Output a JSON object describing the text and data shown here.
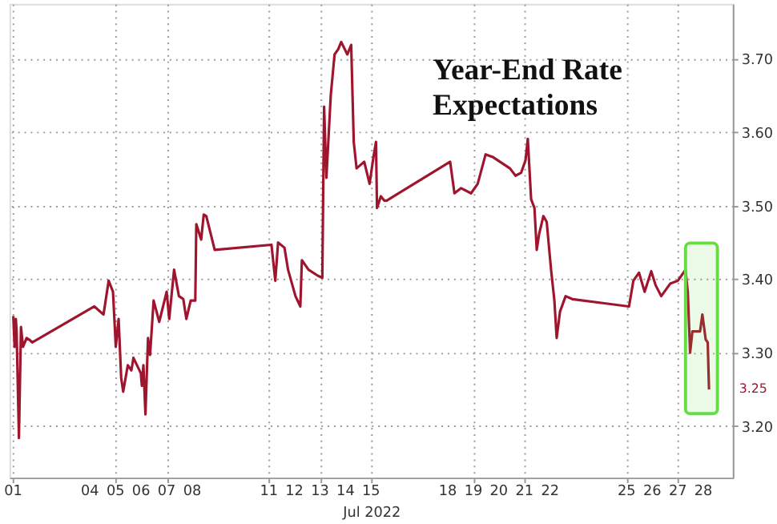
{
  "chart_data": {
    "type": "line",
    "title": "Year-End Rate Expectations",
    "xlabel": "Jul 2022",
    "x": [
      "2022-07-01T00:00",
      "2022-07-01T01:12",
      "2022-07-01T02:24",
      "2022-07-01T03:07",
      "2022-07-01T05:17",
      "2022-07-01T07:12",
      "2022-07-01T09:07",
      "2022-07-01T12:29",
      "2022-07-01T14:53",
      "2022-07-01T17:46",
      "2022-07-04T04:05",
      "2022-07-04T12:43",
      "2022-07-04T17:31",
      "2022-07-04T21:36",
      "2022-07-05T00:14",
      "2022-07-05T02:53",
      "2022-07-05T05:17",
      "2022-07-05T07:12",
      "2022-07-05T11:31",
      "2022-07-05T14:53",
      "2022-07-05T16:48",
      "2022-07-05T23:46",
      "2022-07-06T00:43",
      "2022-07-06T02:10",
      "2022-07-06T04:05",
      "2022-07-06T06:29",
      "2022-07-06T08:24",
      "2022-07-06T11:46",
      "2022-07-06T17:02",
      "2022-07-07T00:00",
      "2022-07-07T02:24",
      "2022-07-07T06:58",
      "2022-07-07T11:31",
      "2022-07-07T15:36",
      "2022-07-07T18:29",
      "2022-07-07T22:34",
      "2022-07-08T02:53",
      "2022-07-08T03:50",
      "2022-07-08T08:24",
      "2022-07-08T10:48",
      "2022-07-08T13:12",
      "2022-07-08T21:07",
      "2022-07-11T02:24",
      "2022-07-11T06:00",
      "2022-07-11T08:38",
      "2022-07-11T14:38",
      "2022-07-11T18:00",
      "2022-07-12T00:58",
      "2022-07-12T05:31",
      "2022-07-12T06:58",
      "2022-07-12T13:12",
      "2022-07-12T21:50",
      "2022-07-13T02:10",
      "2022-07-13T03:50",
      "2022-07-13T06:00",
      "2022-07-13T10:05",
      "2022-07-13T13:41",
      "2022-07-13T17:02",
      "2022-07-13T19:55",
      "2022-07-14T01:41",
      "2022-07-14T05:17",
      "2022-07-14T07:41",
      "2022-07-14T10:19",
      "2022-07-14T17:31",
      "2022-07-14T22:34",
      "2022-07-15T02:10",
      "2022-07-15T04:34",
      "2022-07-15T05:31",
      "2022-07-15T09:07",
      "2022-07-15T12:29",
      "2022-07-15T14:38",
      "2022-07-18T02:10",
      "2022-07-18T06:14",
      "2022-07-18T12:29",
      "2022-07-18T21:50",
      "2022-07-19T04:05",
      "2022-07-19T11:31",
      "2022-07-19T18:43",
      "2022-07-20T10:19",
      "2022-07-20T15:36",
      "2022-07-20T20:53",
      "2022-07-21T00:58",
      "2022-07-21T03:07",
      "2022-07-21T06:14",
      "2022-07-21T09:22",
      "2022-07-21T11:31",
      "2022-07-21T13:41",
      "2022-07-21T17:46",
      "2022-07-21T20:53",
      "2022-07-22T00:58",
      "2022-07-22T04:05",
      "2022-07-22T06:14",
      "2022-07-22T09:22",
      "2022-07-22T14:38",
      "2022-07-22T20:53",
      "2022-07-25T02:10",
      "2022-07-25T06:14",
      "2022-07-25T11:31",
      "2022-07-25T16:48",
      "2022-07-25T23:02",
      "2022-07-26T03:07",
      "2022-07-26T08:24",
      "2022-07-26T16:48",
      "2022-07-27T00:00",
      "2022-07-27T05:17",
      "2022-07-27T07:12",
      "2022-07-27T09:22",
      "2022-07-27T11:31",
      "2022-07-27T13:41",
      "2022-07-27T20:53",
      "2022-07-27T23:02",
      "2022-07-28T02:10",
      "2022-07-28T04:05",
      "2022-07-28T05:17"
    ],
    "series": [
      {
        "color": "#a0152e",
        "values": [
          3.35,
          3.308,
          3.346,
          3.329,
          3.184,
          3.335,
          3.308,
          3.32,
          3.318,
          3.314,
          3.363,
          3.352,
          3.398,
          3.383,
          3.308,
          3.346,
          3.266,
          3.247,
          3.283,
          3.276,
          3.293,
          3.272,
          3.255,
          3.283,
          3.216,
          3.32,
          3.297,
          3.371,
          3.342,
          3.383,
          3.346,
          3.413,
          3.377,
          3.373,
          3.346,
          3.371,
          3.371,
          3.475,
          3.454,
          3.488,
          3.486,
          3.44,
          3.447,
          3.398,
          3.45,
          3.443,
          3.413,
          3.377,
          3.363,
          3.426,
          3.413,
          3.405,
          3.402,
          3.635,
          3.538,
          3.65,
          3.706,
          3.713,
          3.723,
          3.706,
          3.719,
          3.587,
          3.551,
          3.56,
          3.53,
          3.566,
          3.587,
          3.497,
          3.513,
          3.507,
          3.507,
          3.56,
          3.517,
          3.524,
          3.517,
          3.53,
          3.57,
          3.566,
          3.551,
          3.541,
          3.545,
          3.562,
          3.591,
          3.509,
          3.497,
          3.44,
          3.461,
          3.486,
          3.478,
          3.413,
          3.371,
          3.32,
          3.356,
          3.377,
          3.373,
          3.363,
          3.398,
          3.409,
          3.383,
          3.411,
          3.392,
          3.377,
          3.394,
          3.398,
          3.409,
          3.413,
          3.383,
          3.3,
          3.329,
          3.329,
          3.352,
          3.318,
          3.314,
          3.25
        ]
      }
    ],
    "xlim": [
      "2022-06-30T20:24",
      "2022-07-29T03:36"
    ],
    "xticks": [
      {
        "value": "2022-07-01",
        "label": "01"
      },
      {
        "value": "2022-07-04",
        "label": "04"
      },
      {
        "value": "2022-07-05",
        "label": "05"
      },
      {
        "value": "2022-07-06",
        "label": "06"
      },
      {
        "value": "2022-07-07",
        "label": "07"
      },
      {
        "value": "2022-07-08",
        "label": "08"
      },
      {
        "value": "2022-07-11",
        "label": "11"
      },
      {
        "value": "2022-07-12",
        "label": "12"
      },
      {
        "value": "2022-07-13",
        "label": "13"
      },
      {
        "value": "2022-07-14",
        "label": "14"
      },
      {
        "value": "2022-07-15",
        "label": "15"
      },
      {
        "value": "2022-07-18",
        "label": "18"
      },
      {
        "value": "2022-07-19",
        "label": "19"
      },
      {
        "value": "2022-07-20",
        "label": "20"
      },
      {
        "value": "2022-07-21",
        "label": "21"
      },
      {
        "value": "2022-07-22",
        "label": "22"
      },
      {
        "value": "2022-07-25",
        "label": "25"
      },
      {
        "value": "2022-07-26",
        "label": "26"
      },
      {
        "value": "2022-07-27",
        "label": "27"
      },
      {
        "value": "2022-07-28",
        "label": "28"
      }
    ],
    "ylim": [
      3.13,
      3.775
    ],
    "yticks": [
      {
        "value": 3.2,
        "label": "3.20"
      },
      {
        "value": 3.3,
        "label": "3.30"
      },
      {
        "value": 3.4,
        "label": "3.40"
      },
      {
        "value": 3.5,
        "label": "3.50"
      },
      {
        "value": 3.6,
        "label": "3.60"
      },
      {
        "value": 3.7,
        "label": "3.70"
      }
    ],
    "annotations": [
      "3.25"
    ],
    "bands": [
      {
        "axis": "x",
        "from": "2022-07-27T07:12",
        "to": "2022-07-28T13:12",
        "color": "#66dd44"
      }
    ],
    "grid": true
  }
}
